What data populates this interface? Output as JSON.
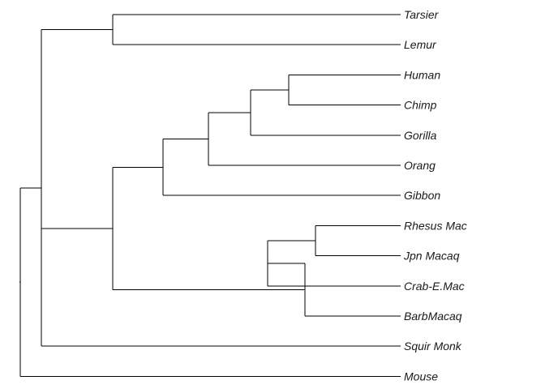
{
  "diagram": {
    "type": "phylogenetic-tree",
    "taxa": [
      "Tarsier",
      "Lemur",
      "Human",
      "Chimp",
      "Gorilla",
      "Orang",
      "Gibbon",
      "Rhesus Mac",
      "Jpn Macaq",
      "Crab-E.Mac",
      "BarbMacaq",
      "Squir Monk",
      "Mouse"
    ],
    "tree": {
      "children": [
        {
          "children": [
            {
              "children": [
                {
                  "leaf": 0
                },
                {
                  "leaf": 1
                }
              ]
            },
            {
              "children": [
                {
                  "children": [
                    {
                      "children": [
                        {
                          "children": [
                            {
                              "children": [
                                {
                                  "leaf": 2
                                },
                                {
                                  "leaf": 3
                                }
                              ]
                            },
                            {
                              "leaf": 4
                            }
                          ]
                        },
                        {
                          "leaf": 5
                        }
                      ]
                    },
                    {
                      "leaf": 6
                    }
                  ]
                },
                {
                  "children": [
                    {
                      "children": [
                        {
                          "children": [
                            {
                              "leaf": 7
                            },
                            {
                              "leaf": 8
                            }
                          ]
                        },
                        {
                          "leaf": 9
                        }
                      ]
                    },
                    {
                      "leaf": 10
                    }
                  ]
                }
              ]
            },
            {
              "leaf": 11
            }
          ]
        },
        {
          "leaf": 12
        }
      ]
    },
    "colors": {
      "branch": "#000000",
      "label": "#1a1a1a"
    }
  }
}
